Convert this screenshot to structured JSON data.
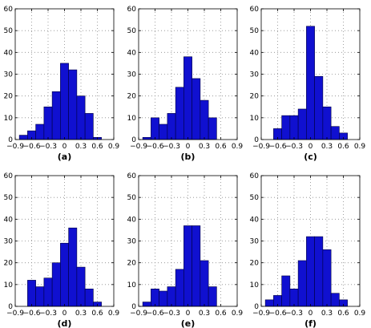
{
  "chart_data": [
    {
      "type": "bar",
      "label": "(a)",
      "bins": [
        -0.75,
        -0.6,
        -0.45,
        -0.3,
        -0.15,
        0,
        0.15,
        0.3,
        0.45,
        0.6
      ],
      "values": [
        2,
        4,
        7,
        15,
        22,
        35,
        32,
        20,
        12,
        1
      ],
      "xticks": [
        "−0.9",
        "−0.6",
        "−0.3",
        "0",
        "0.3",
        "0.6",
        "0.9"
      ],
      "yticks": [
        "0",
        "10",
        "20",
        "30",
        "40",
        "50",
        "60"
      ],
      "xlim": [
        -0.9,
        0.9
      ],
      "ylim": [
        0,
        60
      ],
      "grid": true
    },
    {
      "type": "bar",
      "label": "(b)",
      "bins": [
        -0.75,
        -0.6,
        -0.45,
        -0.3,
        -0.15,
        0,
        0.15,
        0.3,
        0.45,
        0.6
      ],
      "values": [
        1,
        10,
        7,
        12,
        24,
        38,
        28,
        18,
        10,
        0
      ],
      "xticks": [
        "−0.9",
        "−0.6",
        "−0.3",
        "0",
        "0.3",
        "0.6",
        "0.9"
      ],
      "yticks": [
        "0",
        "10",
        "20",
        "30",
        "40",
        "50",
        "60"
      ],
      "xlim": [
        -0.9,
        0.9
      ],
      "ylim": [
        0,
        60
      ],
      "grid": true
    },
    {
      "type": "bar",
      "label": "(c)",
      "bins": [
        -0.75,
        -0.6,
        -0.45,
        -0.3,
        -0.15,
        0,
        0.15,
        0.3,
        0.45,
        0.6
      ],
      "values": [
        0,
        5,
        11,
        11,
        14,
        52,
        29,
        15,
        6,
        3
      ],
      "xticks": [
        "−0.9",
        "−0.6",
        "−0.3",
        "0",
        "0.3",
        "0.6",
        "0.9"
      ],
      "yticks": [
        "0",
        "10",
        "20",
        "30",
        "40",
        "50",
        "60"
      ],
      "xlim": [
        -0.9,
        0.9
      ],
      "ylim": [
        0,
        60
      ],
      "grid": true
    },
    {
      "type": "bar",
      "label": "(d)",
      "bins": [
        -0.75,
        -0.6,
        -0.45,
        -0.3,
        -0.15,
        0,
        0.15,
        0.3,
        0.45,
        0.6
      ],
      "values": [
        0,
        12,
        9,
        13,
        20,
        29,
        36,
        18,
        8,
        2
      ],
      "xticks": [
        "−0.9",
        "−0.6",
        "−0.3",
        "0",
        "0.3",
        "0.6",
        "0.9"
      ],
      "yticks": [
        "0",
        "10",
        "20",
        "30",
        "40",
        "50",
        "60"
      ],
      "xlim": [
        -0.9,
        0.9
      ],
      "ylim": [
        0,
        60
      ],
      "grid": true
    },
    {
      "type": "bar",
      "label": "(e)",
      "bins": [
        -0.75,
        -0.6,
        -0.45,
        -0.3,
        -0.15,
        0,
        0.15,
        0.3,
        0.45,
        0.6
      ],
      "values": [
        2,
        8,
        7,
        9,
        17,
        37,
        37,
        21,
        9,
        0
      ],
      "xticks": [
        "−0.9",
        "−0.6",
        "−0.3",
        "0",
        "0.3",
        "0.6",
        "0.9"
      ],
      "yticks": [
        "0",
        "10",
        "20",
        "30",
        "40",
        "50",
        "60"
      ],
      "xlim": [
        -0.9,
        0.9
      ],
      "ylim": [
        0,
        60
      ],
      "grid": true
    },
    {
      "type": "bar",
      "label": "(f)",
      "bins": [
        -0.75,
        -0.6,
        -0.45,
        -0.3,
        -0.15,
        0,
        0.15,
        0.3,
        0.45,
        0.6
      ],
      "values": [
        3,
        5,
        14,
        8,
        21,
        32,
        32,
        26,
        6,
        3
      ],
      "xticks": [
        "−0.9",
        "−0.6",
        "−0.3",
        "0",
        "0.3",
        "0.6",
        "0.9"
      ],
      "yticks": [
        "0",
        "10",
        "20",
        "30",
        "40",
        "50",
        "60"
      ],
      "xlim": [
        -0.9,
        0.9
      ],
      "ylim": [
        0,
        60
      ],
      "grid": true
    }
  ],
  "colors": {
    "bar_fill": "#1010d0",
    "bar_edge": "#000040",
    "grid": "#8a8a8a",
    "axis": "#000000"
  }
}
